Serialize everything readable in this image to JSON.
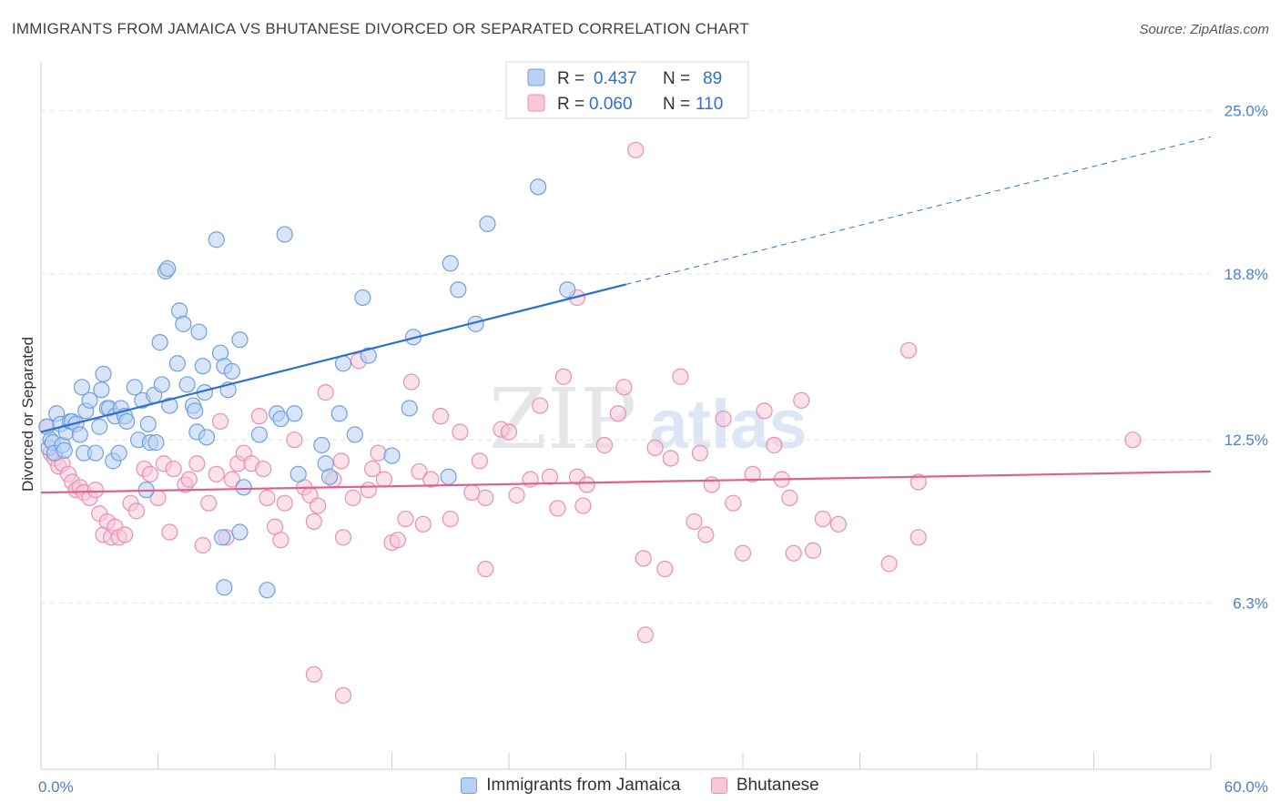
{
  "title": "IMMIGRANTS FROM JAMAICA VS BHUTANESE DIVORCED OR SEPARATED CORRELATION CHART",
  "source": "Source: ZipAtlas.com",
  "watermark": {
    "zip": "ZIP",
    "atlas": "atlas"
  },
  "chart_data": {
    "type": "scatter",
    "ylabel": "Divorced or Separated",
    "xlim": [
      0,
      60
    ],
    "ylim": [
      0,
      26.5
    ],
    "x_tick_labels": [
      {
        "value": 0,
        "label": "0.0%"
      },
      {
        "value": 60,
        "label": "60.0%"
      }
    ],
    "y_tick_labels": [
      {
        "value": 6.3,
        "label": "6.3%"
      },
      {
        "value": 12.5,
        "label": "12.5%"
      },
      {
        "value": 18.8,
        "label": "18.8%"
      },
      {
        "value": 25.0,
        "label": "25.0%"
      }
    ],
    "grid": "horizontal dashed",
    "legend": {
      "placement": "top-center",
      "entries": [
        {
          "r_label": "R =",
          "r_value": "0.437",
          "n_label": "N =",
          "n_value": "89"
        },
        {
          "r_label": "R =",
          "r_value": "0.060",
          "n_label": "N =",
          "n_value": "110"
        }
      ]
    },
    "series": [
      {
        "name": "Immigrants from Jamaica",
        "color": "#6fa0e0",
        "fill": "#b8d0f2",
        "trend": {
          "x0": 0,
          "y0": 12.8,
          "x1": 30,
          "y1": 18.4,
          "dash_x1": 60,
          "dash_y1": 24.0,
          "color": "#2c6fd0"
        },
        "points": [
          [
            0.3,
            13.0
          ],
          [
            0.4,
            12.2
          ],
          [
            0.5,
            12.5
          ],
          [
            0.6,
            12.4
          ],
          [
            0.7,
            12.0
          ],
          [
            0.8,
            13.5
          ],
          [
            1.0,
            13.1
          ],
          [
            1.1,
            12.3
          ],
          [
            1.2,
            12.1
          ],
          [
            1.3,
            12.8
          ],
          [
            1.5,
            13.2
          ],
          [
            1.6,
            13.2
          ],
          [
            1.8,
            13.1
          ],
          [
            2.0,
            12.7
          ],
          [
            2.1,
            14.5
          ],
          [
            2.2,
            12.0
          ],
          [
            2.3,
            13.6
          ],
          [
            2.5,
            14.0
          ],
          [
            2.8,
            12.0
          ],
          [
            3.0,
            13.0
          ],
          [
            3.1,
            14.4
          ],
          [
            3.2,
            15.0
          ],
          [
            3.4,
            13.7
          ],
          [
            3.5,
            13.7
          ],
          [
            3.7,
            11.7
          ],
          [
            3.8,
            13.4
          ],
          [
            4.0,
            12.0
          ],
          [
            4.1,
            13.7
          ],
          [
            4.3,
            13.4
          ],
          [
            4.4,
            13.2
          ],
          [
            4.8,
            14.5
          ],
          [
            5.0,
            12.5
          ],
          [
            5.2,
            14.0
          ],
          [
            5.4,
            10.6
          ],
          [
            5.5,
            13.1
          ],
          [
            5.6,
            12.4
          ],
          [
            5.8,
            14.2
          ],
          [
            5.9,
            12.4
          ],
          [
            6.1,
            16.2
          ],
          [
            6.2,
            14.6
          ],
          [
            6.4,
            18.9
          ],
          [
            6.5,
            19.0
          ],
          [
            6.6,
            13.8
          ],
          [
            7.0,
            15.4
          ],
          [
            7.1,
            17.4
          ],
          [
            7.3,
            16.9
          ],
          [
            7.5,
            14.6
          ],
          [
            7.8,
            13.8
          ],
          [
            7.9,
            13.6
          ],
          [
            8.0,
            12.8
          ],
          [
            8.1,
            16.6
          ],
          [
            8.3,
            15.3
          ],
          [
            8.4,
            14.3
          ],
          [
            8.5,
            12.6
          ],
          [
            9.0,
            20.1
          ],
          [
            9.2,
            15.8
          ],
          [
            9.4,
            15.3
          ],
          [
            9.6,
            14.4
          ],
          [
            9.8,
            15.1
          ],
          [
            10.2,
            16.3
          ],
          [
            10.4,
            10.7
          ],
          [
            11.2,
            12.7
          ],
          [
            10.2,
            9.0
          ],
          [
            9.3,
            8.8
          ],
          [
            9.4,
            6.9
          ],
          [
            11.6,
            6.8
          ],
          [
            12.1,
            13.5
          ],
          [
            12.3,
            13.3
          ],
          [
            12.5,
            20.3
          ],
          [
            13.0,
            13.5
          ],
          [
            13.2,
            11.2
          ],
          [
            14.4,
            12.3
          ],
          [
            14.6,
            11.6
          ],
          [
            14.8,
            11.1
          ],
          [
            15.3,
            13.5
          ],
          [
            15.5,
            15.4
          ],
          [
            16.1,
            12.7
          ],
          [
            16.5,
            17.9
          ],
          [
            16.8,
            15.7
          ],
          [
            18.0,
            11.9
          ],
          [
            18.9,
            13.7
          ],
          [
            19.1,
            16.4
          ],
          [
            20.9,
            11.1
          ],
          [
            21.0,
            19.2
          ],
          [
            21.4,
            18.2
          ],
          [
            22.3,
            16.9
          ],
          [
            22.9,
            20.7
          ],
          [
            25.5,
            22.1
          ],
          [
            27.0,
            18.2
          ]
        ]
      },
      {
        "name": "Bhutanese",
        "color": "#e890b0",
        "fill": "#f8c8d8",
        "trend": {
          "x0": 0,
          "y0": 10.5,
          "x1": 60,
          "y1": 11.3,
          "color": "#e0608c"
        },
        "points": [
          [
            0.3,
            13.0
          ],
          [
            0.5,
            12.0
          ],
          [
            0.7,
            11.8
          ],
          [
            0.9,
            11.5
          ],
          [
            1.1,
            11.6
          ],
          [
            1.4,
            11.2
          ],
          [
            1.6,
            10.9
          ],
          [
            1.8,
            10.6
          ],
          [
            2.0,
            10.7
          ],
          [
            2.2,
            10.5
          ],
          [
            2.5,
            10.3
          ],
          [
            2.8,
            10.6
          ],
          [
            3.0,
            9.7
          ],
          [
            3.2,
            8.9
          ],
          [
            3.4,
            9.4
          ],
          [
            3.6,
            8.8
          ],
          [
            3.8,
            9.2
          ],
          [
            4.0,
            8.8
          ],
          [
            4.3,
            8.9
          ],
          [
            4.6,
            10.1
          ],
          [
            4.9,
            9.8
          ],
          [
            5.3,
            11.4
          ],
          [
            5.6,
            11.2
          ],
          [
            6.0,
            10.3
          ],
          [
            6.3,
            11.6
          ],
          [
            6.6,
            9.0
          ],
          [
            6.8,
            11.4
          ],
          [
            7.4,
            10.8
          ],
          [
            7.6,
            11.0
          ],
          [
            8.0,
            11.6
          ],
          [
            8.3,
            8.5
          ],
          [
            8.6,
            10.1
          ],
          [
            9.0,
            11.2
          ],
          [
            9.2,
            13.2
          ],
          [
            9.5,
            8.8
          ],
          [
            9.8,
            11.0
          ],
          [
            10.1,
            11.6
          ],
          [
            10.4,
            12.0
          ],
          [
            10.8,
            11.6
          ],
          [
            11.2,
            13.4
          ],
          [
            11.4,
            11.4
          ],
          [
            11.6,
            10.3
          ],
          [
            12.0,
            9.2
          ],
          [
            12.3,
            8.7
          ],
          [
            12.5,
            10.1
          ],
          [
            13.0,
            12.5
          ],
          [
            13.5,
            10.7
          ],
          [
            13.8,
            10.4
          ],
          [
            14.0,
            9.4
          ],
          [
            14.2,
            10.0
          ],
          [
            14.6,
            14.3
          ],
          [
            15.0,
            11.0
          ],
          [
            15.4,
            11.7
          ],
          [
            15.5,
            8.8
          ],
          [
            16.0,
            10.3
          ],
          [
            16.3,
            15.5
          ],
          [
            16.8,
            10.6
          ],
          [
            17.0,
            11.4
          ],
          [
            17.3,
            12.0
          ],
          [
            17.6,
            11.0
          ],
          [
            18.0,
            8.6
          ],
          [
            18.3,
            8.7
          ],
          [
            18.7,
            9.5
          ],
          [
            19.0,
            14.7
          ],
          [
            19.4,
            11.3
          ],
          [
            19.6,
            9.3
          ],
          [
            20.0,
            11.0
          ],
          [
            20.5,
            13.4
          ],
          [
            21.0,
            9.5
          ],
          [
            21.5,
            12.8
          ],
          [
            22.1,
            10.5
          ],
          [
            22.5,
            11.7
          ],
          [
            22.8,
            10.3
          ],
          [
            23.6,
            12.9
          ],
          [
            24.0,
            12.8
          ],
          [
            24.4,
            10.4
          ],
          [
            25.1,
            11.0
          ],
          [
            25.6,
            13.8
          ],
          [
            26.1,
            11.1
          ],
          [
            26.8,
            14.9
          ],
          [
            27.5,
            11.1
          ],
          [
            27.8,
            10.0
          ],
          [
            28.0,
            10.8
          ],
          [
            28.9,
            12.3
          ],
          [
            29.6,
            13.5
          ],
          [
            29.9,
            14.5
          ],
          [
            30.9,
            8.0
          ],
          [
            31.0,
            5.1
          ],
          [
            31.5,
            12.2
          ],
          [
            32.0,
            7.6
          ],
          [
            32.3,
            11.8
          ],
          [
            32.8,
            14.9
          ],
          [
            33.5,
            9.4
          ],
          [
            33.8,
            12.0
          ],
          [
            34.1,
            8.9
          ],
          [
            34.4,
            10.8
          ],
          [
            35.0,
            13.3
          ],
          [
            35.5,
            10.1
          ],
          [
            36.0,
            8.2
          ],
          [
            36.5,
            11.2
          ],
          [
            37.1,
            13.6
          ],
          [
            37.6,
            12.3
          ],
          [
            38.0,
            11.0
          ],
          [
            38.4,
            10.3
          ],
          [
            38.6,
            8.2
          ],
          [
            39.0,
            14.0
          ],
          [
            39.6,
            8.3
          ],
          [
            40.1,
            9.5
          ],
          [
            40.9,
            9.3
          ],
          [
            56.0,
            12.5
          ]
        ]
      }
    ],
    "extra_points_bhutanese": [
      [
        14.0,
        3.6
      ],
      [
        15.5,
        2.8
      ],
      [
        22.8,
        7.6
      ],
      [
        26.5,
        9.9
      ],
      [
        30.5,
        23.5
      ],
      [
        27.5,
        17.9
      ],
      [
        44.5,
        15.9
      ],
      [
        45.0,
        8.8
      ],
      [
        43.5,
        7.8
      ],
      [
        45.0,
        10.9
      ]
    ]
  }
}
